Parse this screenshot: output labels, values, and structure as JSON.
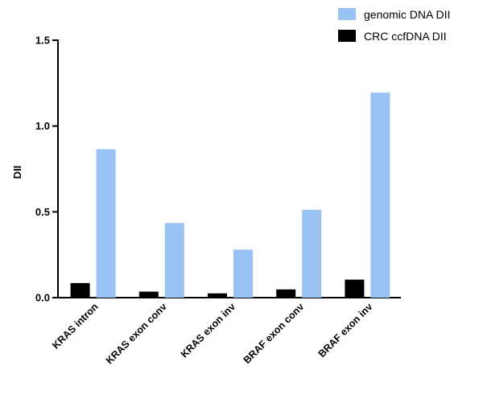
{
  "chart_data": {
    "type": "bar",
    "title": "",
    "xlabel": "",
    "ylabel": "DII",
    "ylim": [
      0,
      1.5
    ],
    "yticks": [
      0.0,
      0.5,
      1.0,
      1.5
    ],
    "ytick_labels": [
      "0.0",
      "0.5",
      "1.0",
      "1.5"
    ],
    "categories": [
      "KRAS intron",
      "KRAS exon conv",
      "KRAS exon inv",
      "BRAF exon conv",
      "BRAF exon inv"
    ],
    "series": [
      {
        "name": "CRC ccfDNA DII",
        "color": "#000000",
        "values": [
          0.085,
          0.035,
          0.025,
          0.048,
          0.105
        ]
      },
      {
        "name": "genomic DNA DII",
        "color": "#99c2f5",
        "values": [
          0.865,
          0.435,
          0.28,
          0.512,
          1.195
        ]
      }
    ],
    "legend": {
      "placement": "top-right",
      "entries": [
        {
          "label": "genomic DNA DII",
          "color": "#99c2f5"
        },
        {
          "label": "CRC ccfDNA DII",
          "color": "#000000"
        }
      ]
    },
    "grid": false
  }
}
